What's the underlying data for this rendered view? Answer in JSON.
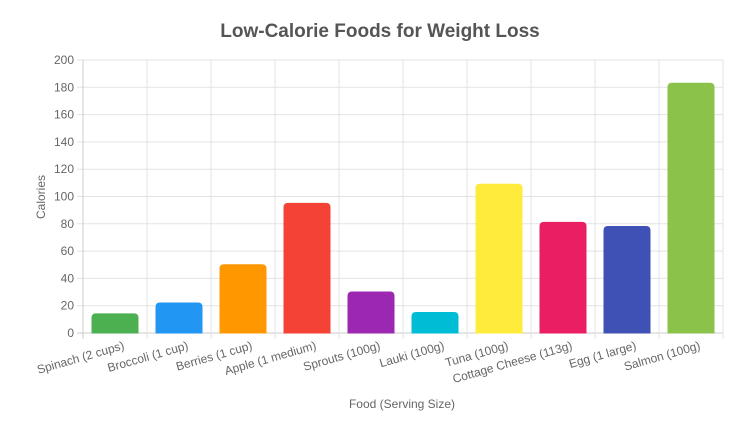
{
  "chart_data": {
    "type": "bar",
    "title": "Low-Calorie Foods for Weight Loss",
    "xlabel": "Food (Serving Size)",
    "ylabel": "Calories",
    "ylim": [
      0,
      200
    ],
    "yticks": [
      0,
      20,
      40,
      60,
      80,
      100,
      120,
      140,
      160,
      180,
      200
    ],
    "grid": true,
    "legend": "none",
    "categories": [
      "Spinach (2 cups)",
      "Broccoli (1 cup)",
      "Berries (1 cup)",
      "Apple (1 medium)",
      "Sprouts (100g)",
      "Lauki (100g)",
      "Tuna (100g)",
      "Cottage Cheese (113g)",
      "Egg (1 large)",
      "Salmon (100g)"
    ],
    "values": [
      14,
      22,
      50,
      95,
      30,
      15,
      109,
      81,
      78,
      183
    ],
    "colors": [
      "#4caf50",
      "#2196f3",
      "#ff9800",
      "#f44336",
      "#9c27b0",
      "#00bcd4",
      "#ffeb3b",
      "#e91e63",
      "#3f51b5",
      "#8bc34a"
    ]
  }
}
